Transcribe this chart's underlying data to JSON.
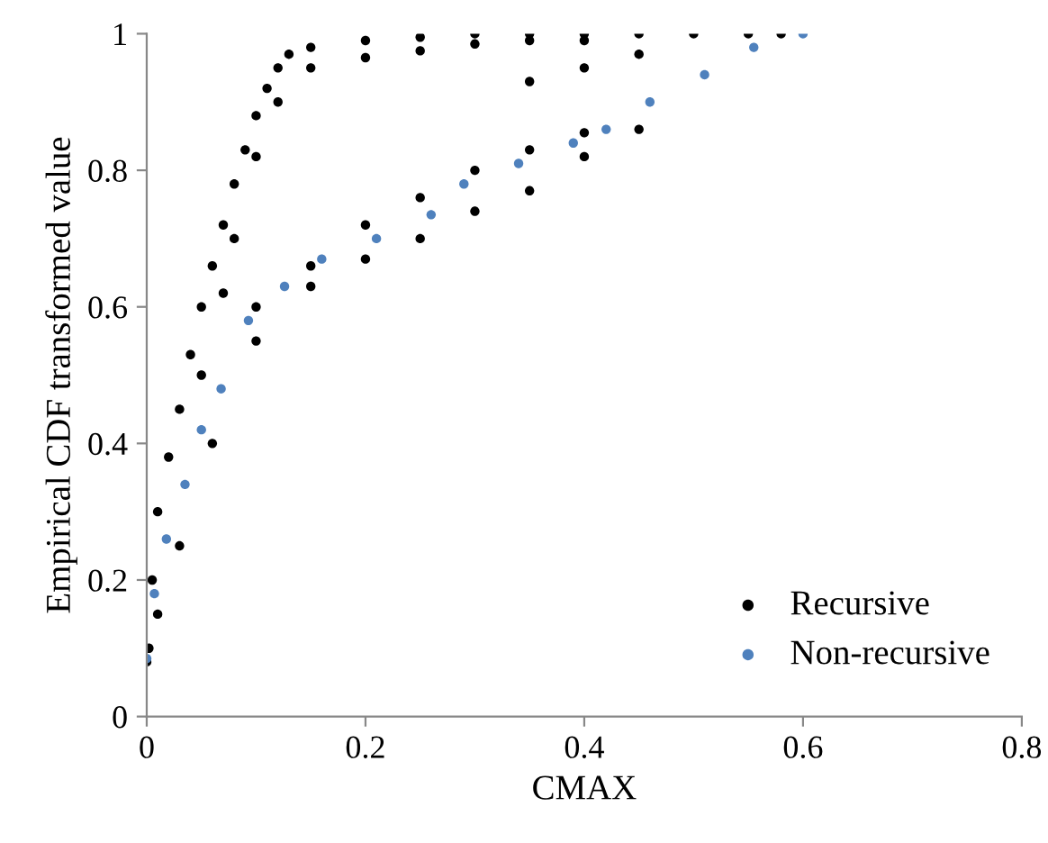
{
  "chart_data": {
    "type": "scatter",
    "xlabel": "CMAX",
    "ylabel": "Empirical CDF transformed value",
    "xlim": [
      0,
      0.8
    ],
    "ylim": [
      0,
      1
    ],
    "xticks": [
      0,
      0.2,
      0.4,
      0.6,
      0.8
    ],
    "yticks": [
      0,
      0.2,
      0.4,
      0.6,
      0.8,
      1
    ],
    "grid": false,
    "legend": "bottom right",
    "marker": "circle",
    "series": [
      {
        "name": "Recursive",
        "color": "#000000",
        "x": [
          0,
          0.005,
          0.01,
          0.02,
          0.03,
          0.04,
          0.05,
          0.06,
          0.07,
          0.08,
          0.09,
          0.1,
          0.11,
          0.12,
          0.13,
          0.15,
          0.2,
          0.25,
          0.3,
          0.35,
          0.4,
          0.45,
          0.5,
          0.55,
          0.58,
          0.05,
          0.07,
          0.08,
          0.1,
          0.12,
          0.15,
          0.2,
          0.25,
          0.3,
          0.35,
          0.4,
          0.35,
          0.4,
          0.45,
          0.1,
          0.15,
          0.2,
          0.25,
          0.3,
          0.35,
          0.4,
          0.002,
          0.01,
          0.03,
          0.06,
          0.1,
          0.15,
          0.2,
          0.25,
          0.3,
          0.35,
          0.4,
          0.45
        ],
        "values": [
          0.08,
          0.2,
          0.3,
          0.38,
          0.45,
          0.53,
          0.6,
          0.66,
          0.72,
          0.78,
          0.83,
          0.88,
          0.92,
          0.95,
          0.97,
          0.98,
          0.99,
          0.995,
          1,
          1,
          1,
          1,
          1,
          1,
          1,
          0.5,
          0.62,
          0.7,
          0.82,
          0.9,
          0.95,
          0.965,
          0.975,
          0.985,
          0.99,
          0.99,
          0.93,
          0.95,
          0.97,
          0.6,
          0.66,
          0.72,
          0.76,
          0.8,
          0.83,
          0.855,
          0.1,
          0.15,
          0.25,
          0.4,
          0.55,
          0.63,
          0.67,
          0.7,
          0.74,
          0.77,
          0.82,
          0.86
        ]
      },
      {
        "name": "Non-recursive",
        "color": "#4f81bd",
        "x": [
          0,
          0.007,
          0.018,
          0.035,
          0.05,
          0.068,
          0.093,
          0.126,
          0.16,
          0.21,
          0.26,
          0.29,
          0.34,
          0.39,
          0.42,
          0.46,
          0.51,
          0.555,
          0.6
        ],
        "values": [
          0.085,
          0.18,
          0.26,
          0.34,
          0.42,
          0.48,
          0.58,
          0.63,
          0.67,
          0.7,
          0.735,
          0.78,
          0.81,
          0.84,
          0.86,
          0.9,
          0.94,
          0.98,
          1
        ]
      }
    ]
  }
}
